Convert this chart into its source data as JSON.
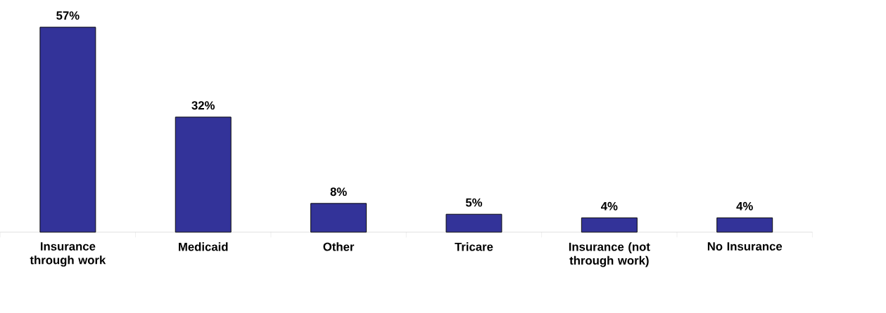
{
  "chart_data": {
    "type": "bar",
    "categories": [
      "Insurance through work",
      "Medicaid",
      "Other",
      "Tricare",
      "Insurance (not through work)",
      "No Insurance"
    ],
    "values": [
      57,
      32,
      8,
      5,
      4,
      4
    ],
    "value_labels": [
      "57%",
      "32%",
      "8%",
      "5%",
      "4%",
      "4%"
    ],
    "color": "#333399"
  }
}
